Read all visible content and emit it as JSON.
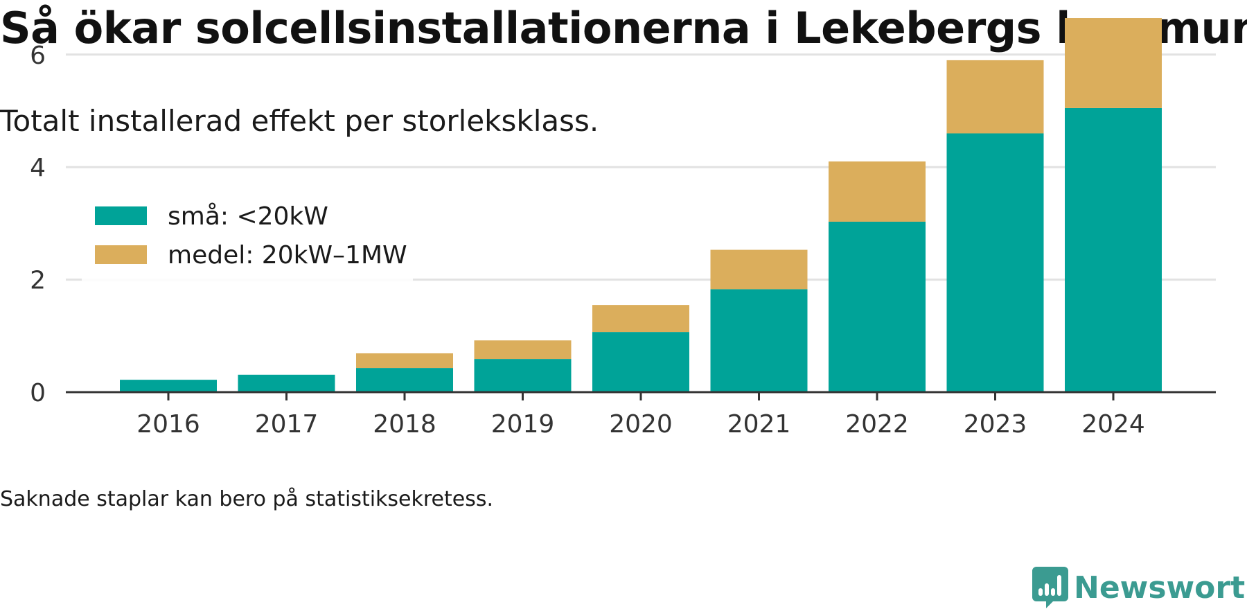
{
  "title": "Så ökar solcellsinstallationerna i Lekebergs kommun",
  "subtitle": "Totalt installerad effekt per storleksklass.",
  "footnote": "Saknade staplar kan bero på statistiksekretess.",
  "brand": {
    "name": "Newsworthy",
    "color": "#3b9b91",
    "icon": "newsworthy-logo-icon"
  },
  "chart_data": {
    "type": "bar",
    "stacked": true,
    "categories": [
      "2016",
      "2017",
      "2018",
      "2019",
      "2020",
      "2021",
      "2022",
      "2023",
      "2024"
    ],
    "series": [
      {
        "name": "små: <20kW",
        "color": "#00a398",
        "values": [
          0.22,
          0.31,
          0.43,
          0.59,
          1.07,
          1.83,
          3.03,
          4.6,
          5.05
        ]
      },
      {
        "name": "medel: 20kW–1MW",
        "color": "#dbae5c",
        "values": [
          0.0,
          0.0,
          0.26,
          0.33,
          0.48,
          0.7,
          1.07,
          1.3,
          1.6
        ]
      }
    ],
    "yticks": [
      0,
      2,
      4,
      6
    ],
    "ylim": [
      0,
      7
    ],
    "xlabel": "",
    "ylabel": "",
    "grid": true,
    "legend": "top-left"
  }
}
